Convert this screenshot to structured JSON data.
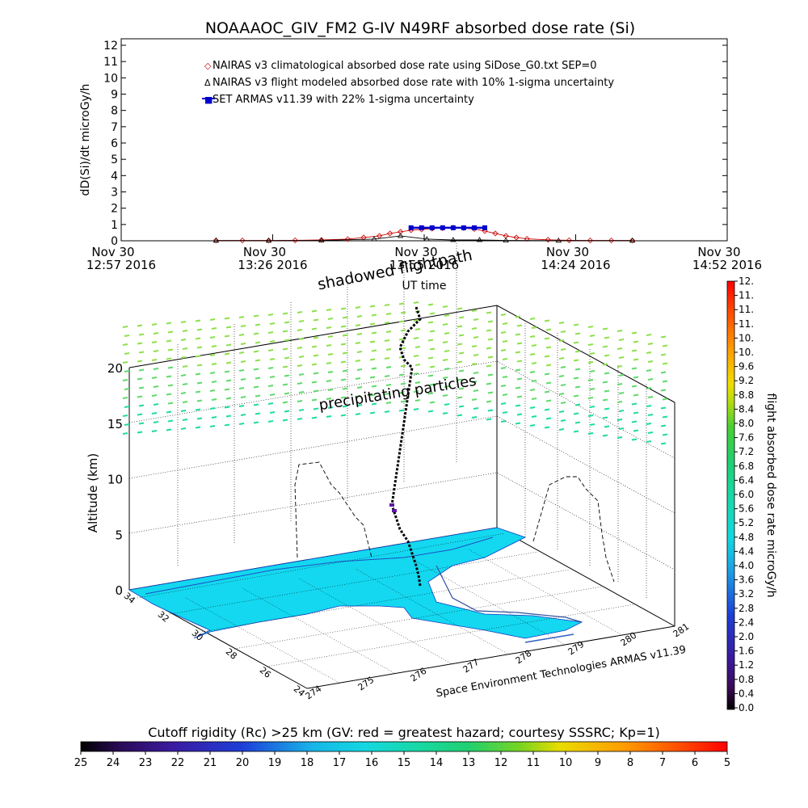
{
  "top_chart": {
    "title": "NOAAAOC_GIV_FM2 G-IV    N49RF  absorbed dose rate (Si)",
    "ylabel": "dD(Si)/dt microGy/h",
    "xlabel": "UT time",
    "x_ticks": [
      {
        "month_day": "Nov 30",
        "clock": "12:57 2016"
      },
      {
        "month_day": "Nov 30",
        "clock": "13:26 2016"
      },
      {
        "month_day": "Nov 30",
        "clock": "13:55 2016"
      },
      {
        "month_day": "Nov 30",
        "clock": "14:24 2016"
      },
      {
        "month_day": "Nov 30",
        "clock": "14:52 2016"
      }
    ],
    "legend": [
      {
        "marker": "◇",
        "label": "NAIRAS v3 climatological absorbed dose rate using SiDose_G0.txt SEP=0",
        "color": "#cc0000"
      },
      {
        "marker": "Δ",
        "label": "NAIRAS v3 flight modeled absorbed dose rate with 10% 1-sigma uncertainty",
        "color": "#000000"
      },
      {
        "marker": "■",
        "label": "SET ARMAS v11.39 with 22% 1-sigma uncertainty",
        "color": "#0000cc"
      }
    ]
  },
  "chart_data": [
    {
      "type": "line",
      "title": "NOAAAOC_GIV_FM2 G-IV    N49RF  absorbed dose rate (Si)",
      "xlabel": "UT time",
      "ylabel": "dD(Si)/dt microGy/h",
      "xlim": [
        "12:57",
        "14:52"
      ],
      "ylim": [
        0,
        12
      ],
      "grid": false,
      "legend_position": "top-left",
      "series": [
        {
          "name": "NAIRAS v3 climatological absorbed dose rate using SiDose_G0.txt SEP=0",
          "color": "#cc0000",
          "x": [
            "13:15",
            "13:20",
            "13:25",
            "13:30",
            "13:35",
            "13:40",
            "13:43",
            "13:46",
            "13:48",
            "13:50",
            "13:52",
            "13:54",
            "13:56",
            "13:58",
            "14:00",
            "14:02",
            "14:04",
            "14:06",
            "14:08",
            "14:10",
            "14:12",
            "14:14",
            "14:18",
            "14:22",
            "14:26",
            "14:30",
            "14:34"
          ],
          "y": [
            0.02,
            0.02,
            0.02,
            0.03,
            0.05,
            0.1,
            0.2,
            0.3,
            0.45,
            0.55,
            0.65,
            0.7,
            0.75,
            0.78,
            0.8,
            0.78,
            0.72,
            0.6,
            0.45,
            0.3,
            0.2,
            0.12,
            0.06,
            0.03,
            0.02,
            0.02,
            0.02
          ]
        },
        {
          "name": "NAIRAS v3 flight modeled absorbed dose rate with 10% 1-sigma uncertainty",
          "color": "#000000",
          "x": [
            "13:15",
            "13:25",
            "13:35",
            "13:45",
            "13:50",
            "13:55",
            "14:00",
            "14:05",
            "14:10",
            "14:20",
            "14:34"
          ],
          "y": [
            0.01,
            0.01,
            0.02,
            0.1,
            0.3,
            0.1,
            0.05,
            0.05,
            0.02,
            0.01,
            0.01
          ]
        },
        {
          "name": "SET ARMAS v11.39 with 22% 1-sigma uncertainty",
          "color": "#0000cc",
          "x": [
            "13:52",
            "13:54",
            "13:56",
            "13:58",
            "14:00",
            "14:02",
            "14:04",
            "14:06"
          ],
          "y": [
            0.8,
            0.8,
            0.8,
            0.8,
            0.8,
            0.8,
            0.8,
            0.8
          ]
        }
      ]
    },
    {
      "type": "scatter",
      "chart_kind": "3d flight track over map",
      "ylabel": "Altitude (km)",
      "altitude_ticks": [
        0,
        5,
        10,
        15,
        20
      ],
      "longitude_ticks": [
        274,
        275,
        276,
        277,
        278,
        279,
        280,
        281
      ],
      "latitude_ticks": [
        24,
        26,
        28,
        30,
        32,
        34
      ],
      "annotations": [
        "shadowed flightpath",
        "precipitating particles"
      ],
      "credit": "Space Environment Technologies ARMAS v11.39",
      "colorbar": {
        "label": "flight absorbed dose rate microGy/h",
        "ticks": [
          "0.0",
          "0.4",
          "0.8",
          "1.2",
          "1.6",
          "2.0",
          "2.4",
          "2.8",
          "3.2",
          "3.6",
          "4.0",
          "4.4",
          "4.8",
          "5.2",
          "5.6",
          "6.0",
          "6.4",
          "6.8",
          "7.2",
          "7.6",
          "8.0",
          "8.4",
          "8.8",
          "9.2",
          "9.6",
          "10.",
          "10.",
          "11.",
          "11.",
          "11.",
          "12."
        ]
      },
      "rigidity_bar": {
        "label": "Cutoff rigidity (Rc) >25 km (GV: red = greatest hazard; courtesy SSSRC; Kp=1)",
        "ticks": [
          "25",
          "24",
          "23",
          "22",
          "21",
          "20",
          "19",
          "18",
          "17",
          "16",
          "15",
          "14",
          "13",
          "12",
          "11",
          "10",
          "9",
          "8",
          "7",
          "6",
          "5"
        ]
      }
    }
  ]
}
